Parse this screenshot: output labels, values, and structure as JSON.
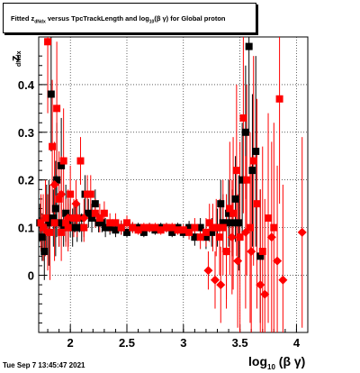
{
  "title": {
    "prefix": "Fitted  z",
    "sub1": "dNdx",
    "middle": "  versus TpcTrackLength and log",
    "sub2": "10",
    "suffix": "(β γ) for Global proton"
  },
  "footer_text": "Tue Sep  7 13:45:47 2021",
  "chart_data": {
    "type": "scatter",
    "title": "Fitted  z_dNdx  versus TpcTrackLength and log_10(β γ) for Global proton",
    "xlabel": "log_10(β γ)",
    "ylabel": "z_dNdx",
    "xlim": [
      1.72,
      4.1
    ],
    "ylim": [
      -0.12,
      0.5
    ],
    "xticks": [
      "2",
      "2.5",
      "3",
      "3.5",
      "4"
    ],
    "yticks": [
      "0",
      "0.1",
      "0.2",
      "0.3",
      "0.4"
    ],
    "grid": true,
    "colors": {
      "black_series": "#000000",
      "red_series": "#ff0000"
    },
    "series": [
      {
        "marker": "square",
        "color": "#000000",
        "x": [
          1.73,
          1.75,
          1.77,
          1.79,
          1.81,
          1.83,
          1.85,
          1.87,
          1.88,
          1.9,
          1.92,
          1.94,
          1.96,
          1.98,
          2.0,
          2.02,
          2.04,
          2.06,
          2.08,
          2.1,
          2.13,
          2.16,
          2.19,
          2.22,
          2.25,
          2.28,
          2.31,
          2.35,
          2.4,
          2.45,
          2.5,
          2.55,
          2.6,
          2.65,
          2.7,
          2.75,
          2.8,
          2.85,
          2.9,
          2.95,
          3.0,
          3.05,
          3.1,
          3.15,
          3.2,
          3.25,
          3.3,
          3.33,
          3.35,
          3.38,
          3.4,
          3.43,
          3.46,
          3.49,
          3.52,
          3.55,
          3.58,
          3.61,
          3.64,
          3.68
        ],
        "y": [
          0.11,
          0.08,
          0.05,
          0.12,
          0.11,
          0.38,
          0.12,
          0.14,
          0.2,
          0.11,
          0.23,
          0.1,
          0.13,
          0.11,
          0.12,
          0.1,
          0.12,
          0.1,
          0.12,
          0.1,
          0.17,
          0.13,
          0.12,
          0.15,
          0.11,
          0.11,
          0.1,
          0.1,
          0.095,
          0.1,
          0.09,
          0.1,
          0.1,
          0.09,
          0.1,
          0.095,
          0.1,
          0.1,
          0.09,
          0.1,
          0.09,
          0.1,
          0.08,
          0.1,
          0.08,
          0.09,
          0.1,
          0.15,
          0.11,
          0.11,
          0.13,
          0.11,
          0.16,
          0.11,
          0.2,
          0.3,
          0.48,
          0.22,
          0.26,
          0.04
        ],
        "err": [
          0.04,
          0.05,
          0.06,
          0.07,
          0.09,
          0.12,
          0.06,
          0.1,
          0.12,
          0.05,
          0.1,
          0.04,
          0.06,
          0.05,
          0.04,
          0.04,
          0.03,
          0.03,
          0.03,
          0.03,
          0.04,
          0.03,
          0.03,
          0.03,
          0.02,
          0.02,
          0.02,
          0.015,
          0.015,
          0.015,
          0.01,
          0.01,
          0.01,
          0.01,
          0.01,
          0.01,
          0.01,
          0.01,
          0.01,
          0.01,
          0.012,
          0.014,
          0.018,
          0.02,
          0.025,
          0.03,
          0.04,
          0.05,
          0.06,
          0.06,
          0.07,
          0.07,
          0.09,
          0.1,
          0.12,
          0.14,
          0.18,
          0.16,
          0.2,
          0.14
        ]
      },
      {
        "marker": "square",
        "color": "#ff0000",
        "x": [
          1.74,
          1.76,
          1.78,
          1.8,
          1.82,
          1.84,
          1.86,
          1.88,
          1.9,
          1.92,
          1.94,
          1.96,
          1.98,
          2.0,
          2.03,
          2.06,
          2.09,
          2.12,
          2.15,
          2.18,
          2.22,
          2.26,
          2.3,
          2.35,
          2.4,
          2.45,
          2.5,
          2.55,
          2.6,
          2.65,
          2.7,
          2.75,
          2.8,
          2.85,
          2.9,
          2.95,
          3.0,
          3.05,
          3.1,
          3.15,
          3.2,
          3.23,
          3.26,
          3.29,
          3.32,
          3.35,
          3.38,
          3.41,
          3.44,
          3.47,
          3.5,
          3.53,
          3.56,
          3.59,
          3.62,
          3.65,
          3.7,
          3.75,
          3.8,
          3.85
        ],
        "y": [
          0.11,
          0.1,
          0.12,
          0.49,
          0.09,
          0.27,
          0.11,
          0.35,
          0.16,
          0.09,
          0.24,
          0.11,
          0.1,
          0.17,
          0.12,
          0.12,
          0.24,
          0.1,
          0.17,
          0.17,
          0.13,
          0.12,
          0.13,
          0.11,
          0.11,
          0.1,
          0.11,
          0.1,
          0.095,
          0.1,
          0.1,
          0.1,
          0.095,
          0.1,
          0.1,
          0.095,
          0.095,
          0.09,
          0.1,
          0.08,
          0.09,
          0.11,
          0.1,
          0.1,
          0.08,
          0.1,
          0.05,
          0.14,
          0.13,
          0.22,
          0.08,
          0.33,
          0.2,
          0.1,
          0.24,
          0.15,
          0.05,
          0.12,
          0.1,
          0.37
        ],
        "err": [
          0.06,
          0.07,
          0.08,
          0.15,
          0.1,
          0.14,
          0.08,
          0.14,
          0.1,
          0.06,
          0.11,
          0.05,
          0.05,
          0.06,
          0.04,
          0.04,
          0.05,
          0.03,
          0.04,
          0.04,
          0.03,
          0.03,
          0.025,
          0.02,
          0.02,
          0.015,
          0.015,
          0.012,
          0.01,
          0.01,
          0.01,
          0.01,
          0.01,
          0.01,
          0.01,
          0.01,
          0.012,
          0.015,
          0.02,
          0.025,
          0.03,
          0.04,
          0.05,
          0.06,
          0.08,
          0.1,
          0.12,
          0.14,
          0.16,
          0.18,
          0.2,
          0.2,
          0.2,
          0.2,
          0.22,
          0.22,
          0.22,
          0.22,
          0.22,
          0.22
        ]
      },
      {
        "marker": "diamond",
        "color": "#ff0000",
        "x": [
          1.8,
          1.86,
          1.92,
          1.98,
          2.05,
          2.12,
          3.22,
          3.28,
          3.33,
          3.38,
          3.43,
          3.48,
          3.55,
          3.6,
          3.68,
          3.72,
          3.78,
          3.83,
          3.88,
          4.05
        ],
        "y": [
          0.09,
          0.19,
          0.17,
          0.12,
          0.15,
          0.12,
          0.01,
          -0.01,
          -0.02,
          0.05,
          0.08,
          0.03,
          0.09,
          0.05,
          -0.02,
          -0.04,
          0.08,
          0.03,
          -0.01,
          0.09
        ],
        "err": [
          0.08,
          0.09,
          0.08,
          0.06,
          0.05,
          0.04,
          0.04,
          0.06,
          0.08,
          0.1,
          0.12,
          0.14,
          0.16,
          0.18,
          0.2,
          0.2,
          0.2,
          0.2,
          0.2,
          0.2
        ]
      }
    ]
  }
}
